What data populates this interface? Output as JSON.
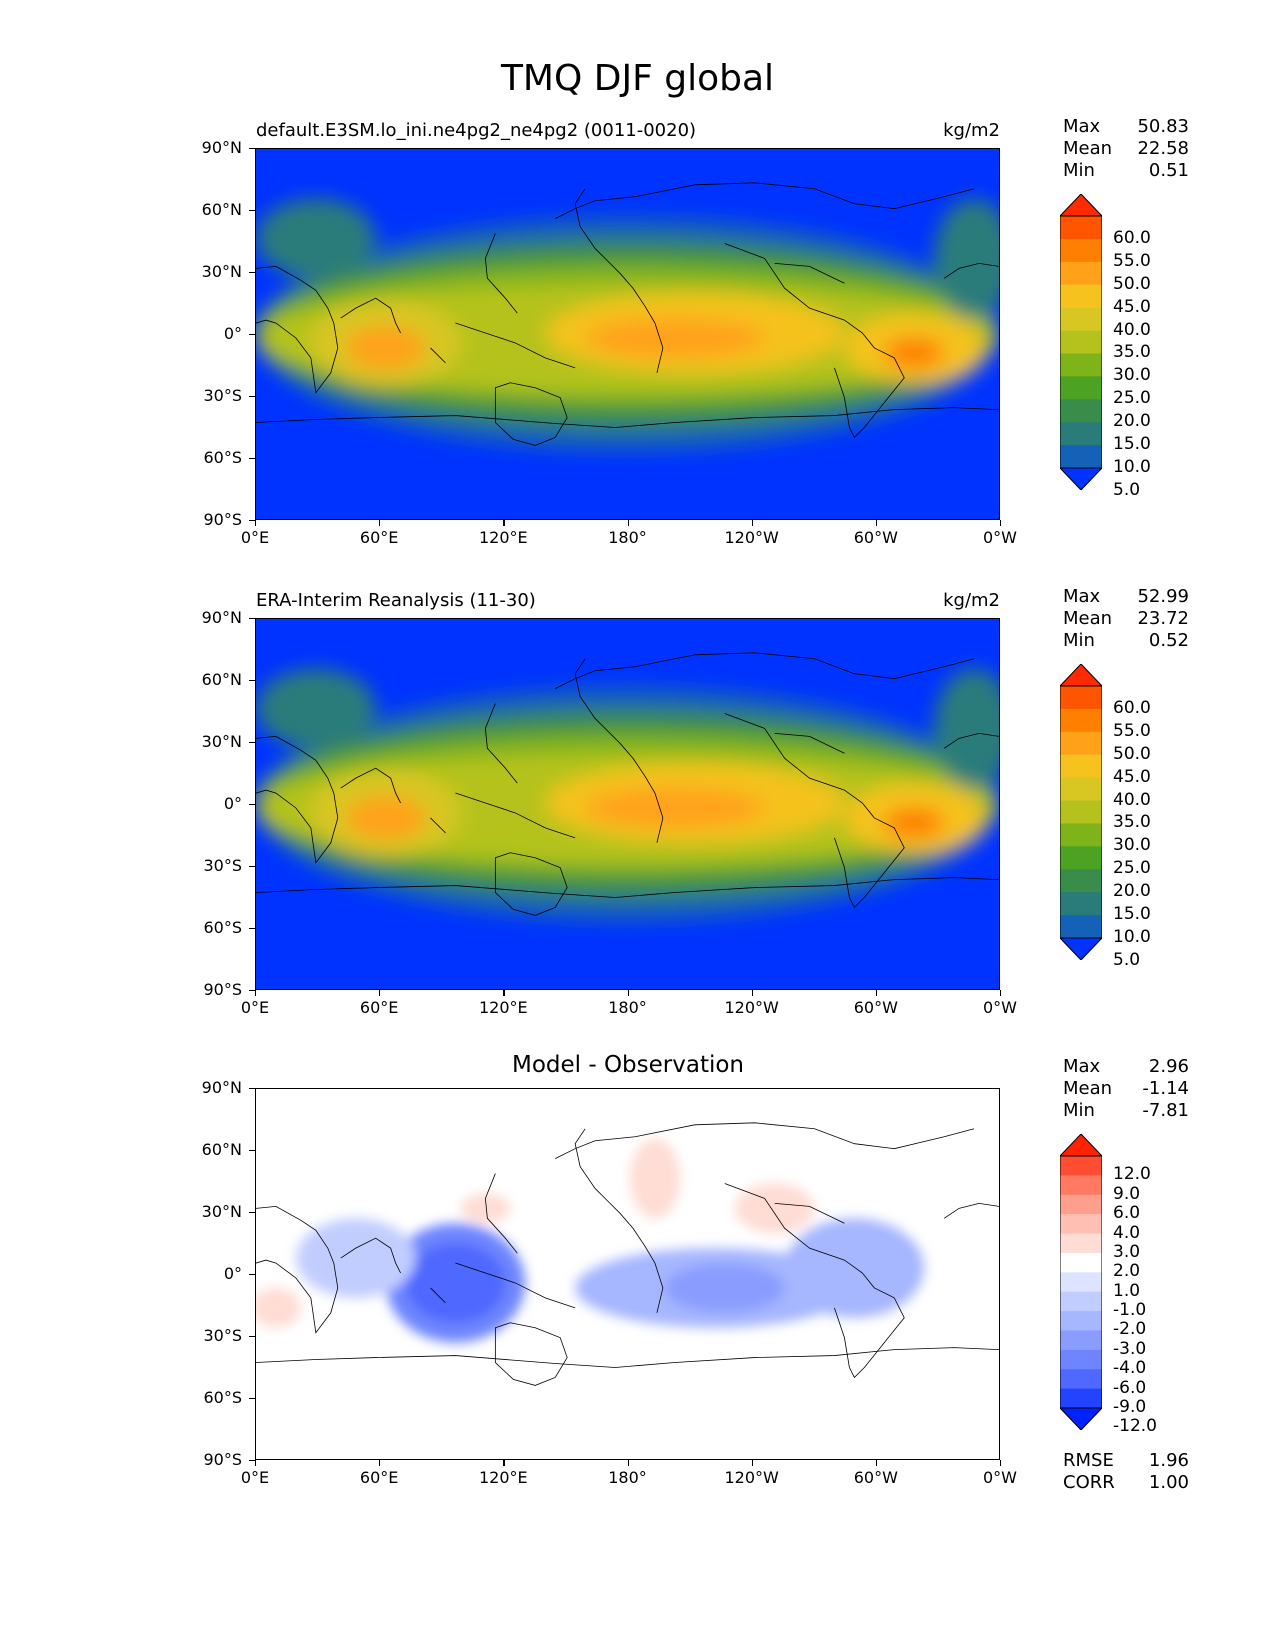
{
  "figure": {
    "title": "TMQ DJF global"
  },
  "axes": {
    "yticks": [
      "90°N",
      "60°N",
      "30°N",
      "0°",
      "30°S",
      "60°S",
      "90°S"
    ],
    "xticks": [
      "0°E",
      "60°E",
      "120°E",
      "180°",
      "120°W",
      "60°W",
      "0°W"
    ]
  },
  "panels": [
    {
      "title_left": "default.E3SM.lo_ini.ne4pg2_ne4pg2 (0011-0020)",
      "title_right": "kg/m2",
      "title_center": "",
      "stats": [
        [
          "Max",
          "50.83"
        ],
        [
          "Mean",
          "22.58"
        ],
        [
          "Min",
          "0.51"
        ]
      ],
      "colorbar_labels": [
        "60.0",
        "55.0",
        "50.0",
        "45.0",
        "40.0",
        "35.0",
        "30.0",
        "25.0",
        "20.0",
        "15.0",
        "10.0",
        "5.0"
      ],
      "extra": []
    },
    {
      "title_left": "ERA-Interim Reanalysis (11-30)",
      "title_right": "kg/m2",
      "title_center": "",
      "stats": [
        [
          "Max",
          "52.99"
        ],
        [
          "Mean",
          "23.72"
        ],
        [
          "Min",
          "0.52"
        ]
      ],
      "colorbar_labels": [
        "60.0",
        "55.0",
        "50.0",
        "45.0",
        "40.0",
        "35.0",
        "30.0",
        "25.0",
        "20.0",
        "15.0",
        "10.0",
        "5.0"
      ],
      "extra": []
    },
    {
      "title_left": "",
      "title_right": "",
      "title_center": "Model - Observation",
      "stats": [
        [
          "Max",
          "2.96"
        ],
        [
          "Mean",
          "-1.14"
        ],
        [
          "Min",
          "-7.81"
        ]
      ],
      "colorbar_labels": [
        "12.0",
        "9.0",
        "6.0",
        "4.0",
        "3.0",
        "2.0",
        "1.0",
        "-1.0",
        "-2.0",
        "-3.0",
        "-4.0",
        "-6.0",
        "-9.0",
        "-12.0"
      ],
      "extra": [
        [
          "RMSE",
          "1.96"
        ],
        [
          "CORR",
          "1.00"
        ]
      ]
    }
  ],
  "colors": {
    "abs_levels": [
      "#ff2a00",
      "#ff5500",
      "#ff7f00",
      "#ffa21a",
      "#f5c21e",
      "#d8c622",
      "#b5c21e",
      "#7eb31a",
      "#4ca222",
      "#3a8c4a",
      "#2a7c7a",
      "#1462b8",
      "#0033ff"
    ],
    "diff_levels": [
      "#ff2200",
      "#ff4d33",
      "#ff7a61",
      "#ff9e8c",
      "#ffbfb2",
      "#ffdcd4",
      "#ffffff",
      "#dde4ff",
      "#c2cdff",
      "#a6b6ff",
      "#8a9dff",
      "#6e85ff",
      "#4f68ff",
      "#2244ff",
      "#0022ff"
    ]
  },
  "chart_data": [
    {
      "type": "heatmap",
      "title": "default.E3SM.lo_ini.ne4pg2_ne4pg2 (0011-0020)",
      "units": "kg/m2",
      "xlim": [
        0,
        360
      ],
      "ylim": [
        -90,
        90
      ],
      "levels": [
        5,
        10,
        15,
        20,
        25,
        30,
        35,
        40,
        45,
        50,
        55,
        60
      ],
      "stats": {
        "max": 50.83,
        "mean": 22.58,
        "min": 0.51
      }
    },
    {
      "type": "heatmap",
      "title": "ERA-Interim Reanalysis (11-30)",
      "units": "kg/m2",
      "xlim": [
        0,
        360
      ],
      "ylim": [
        -90,
        90
      ],
      "levels": [
        5,
        10,
        15,
        20,
        25,
        30,
        35,
        40,
        45,
        50,
        55,
        60
      ],
      "stats": {
        "max": 52.99,
        "mean": 23.72,
        "min": 0.52
      }
    },
    {
      "type": "heatmap",
      "title": "Model - Observation",
      "xlim": [
        0,
        360
      ],
      "ylim": [
        -90,
        90
      ],
      "levels": [
        -12,
        -9,
        -6,
        -4,
        -3,
        -2,
        -1,
        1,
        2,
        3,
        4,
        6,
        9,
        12
      ],
      "stats": {
        "max": 2.96,
        "mean": -1.14,
        "min": -7.81,
        "rmse": 1.96,
        "corr": 1.0
      }
    }
  ]
}
